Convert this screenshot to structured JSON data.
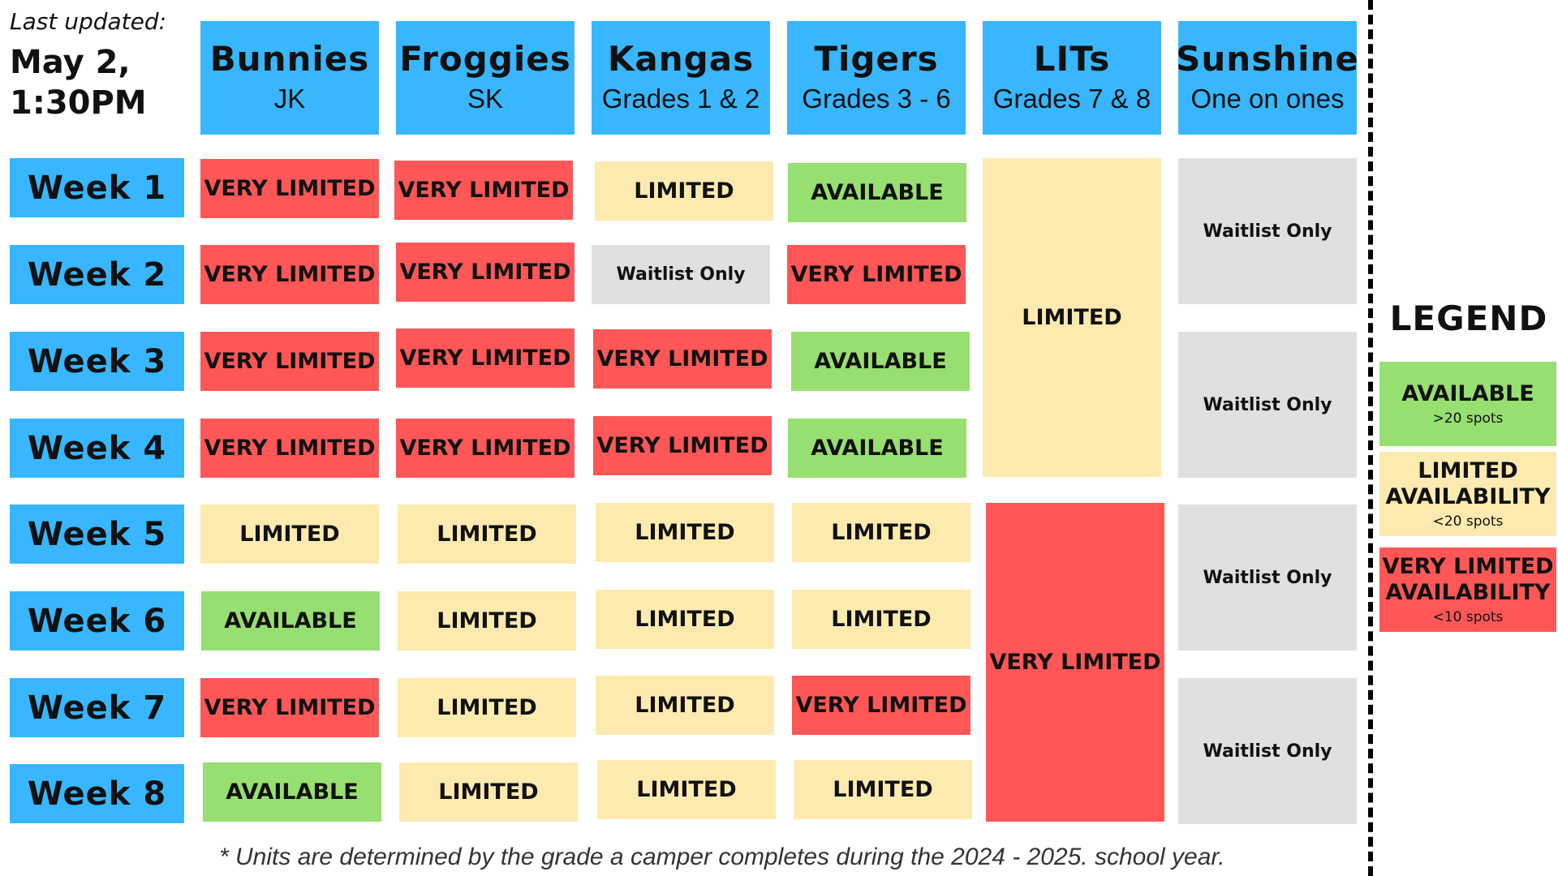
{
  "last_updated": {
    "label": "Last updated:",
    "date": "May 2, 1:30PM"
  },
  "columns": [
    {
      "name": "Bunnies",
      "sub": "JK"
    },
    {
      "name": "Froggies",
      "sub": "SK"
    },
    {
      "name": "Kangas",
      "sub": "Grades 1 & 2"
    },
    {
      "name": "Tigers",
      "sub": "Grades 3 - 6"
    },
    {
      "name": "LITs",
      "sub": "Grades 7 & 8"
    },
    {
      "name": "Sunshine",
      "sub": "One on ones"
    }
  ],
  "weeks": [
    "Week 1",
    "Week 2",
    "Week 3",
    "Week 4",
    "Week 5",
    "Week 6",
    "Week 7",
    "Week 8"
  ],
  "availability": {
    "bunnies": [
      "VERY LIMITED",
      "VERY LIMITED",
      "VERY LIMITED",
      "VERY LIMITED",
      "LIMITED",
      "AVAILABLE",
      "VERY LIMITED",
      "AVAILABLE"
    ],
    "froggies": [
      "VERY LIMITED",
      "VERY LIMITED",
      "VERY LIMITED",
      "VERY LIMITED",
      "LIMITED",
      "LIMITED",
      "LIMITED",
      "LIMITED"
    ],
    "kangas": [
      "LIMITED",
      "Waitlist Only",
      "VERY LIMITED",
      "VERY LIMITED",
      "LIMITED",
      "LIMITED",
      "LIMITED",
      "LIMITED"
    ],
    "tigers": [
      "AVAILABLE",
      "VERY LIMITED",
      "AVAILABLE",
      "AVAILABLE",
      "LIMITED",
      "LIMITED",
      "VERY LIMITED",
      "LIMITED"
    ],
    "lits": [
      "LIMITED",
      "VERY LIMITED"
    ],
    "sunshine": [
      "Waitlist Only",
      "Waitlist Only",
      "Waitlist Only",
      "Waitlist Only"
    ]
  },
  "legend": {
    "title": "LEGEND",
    "items": [
      {
        "label": "AVAILABLE",
        "note": ">20 spots",
        "color": "#97df71"
      },
      {
        "label": "LIMITED AVAILABILITY",
        "note": "<20 spots",
        "color": "#fdeaaf"
      },
      {
        "label": "VERY LIMITED AVAILABILITY",
        "note": "<10 spots",
        "color": "#ff5757"
      }
    ]
  },
  "colors": {
    "header_blue": "#38b6ff",
    "very_limited": "#ff5757",
    "limited": "#fdeaaf",
    "available": "#97df71",
    "waitlist": "#e0e0e0"
  },
  "footnote": "* Units are determined by the grade a camper completes during the 2024 - 2025. school year."
}
